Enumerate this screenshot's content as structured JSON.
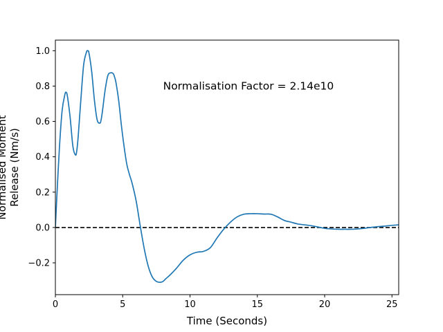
{
  "chart_data": {
    "type": "line",
    "title": "",
    "xlabel": "Time (Seconds)",
    "ylabel_lines": [
      "Normalised Moment",
      "Release (Nm/s)"
    ],
    "xlim": [
      0,
      25.5
    ],
    "ylim": [
      -0.38,
      1.06
    ],
    "xticks": [
      0,
      5,
      10,
      15,
      20,
      25
    ],
    "xtick_labels": [
      "0",
      "5",
      "10",
      "15",
      "20",
      "25"
    ],
    "yticks": [
      -0.2,
      0.0,
      0.2,
      0.4,
      0.6,
      0.8,
      1.0
    ],
    "ytick_labels": [
      "−0.2",
      "0.0",
      "0.2",
      "0.4",
      "0.6",
      "0.8",
      "1.0"
    ],
    "grid": false,
    "annotation": {
      "text": "Normalisation Factor = 2.14e10",
      "x": 8.0,
      "y": 0.8
    },
    "reference_line": {
      "y": 0.0,
      "style": "dashed",
      "color": "#000000"
    },
    "series": [
      {
        "color": "#1f77b4",
        "x": [
          0.0,
          0.1,
          0.3,
          0.5,
          0.7,
          0.8,
          0.9,
          1.1,
          1.3,
          1.5,
          1.6,
          1.7,
          1.9,
          2.1,
          2.3,
          2.4,
          2.5,
          2.7,
          2.9,
          3.1,
          3.3,
          3.4,
          3.5,
          3.7,
          3.9,
          4.1,
          4.3,
          4.4,
          4.5,
          4.7,
          4.9,
          5.1,
          5.3,
          5.5,
          5.7,
          6.0,
          6.3,
          6.6,
          6.9,
          7.2,
          7.5,
          7.8,
          8.0,
          8.2,
          8.5,
          9.0,
          9.5,
          10.0,
          10.5,
          11.0,
          11.5,
          12.0,
          12.5,
          13.0,
          13.5,
          14.0,
          14.5,
          15.0,
          15.5,
          16.0,
          16.5,
          17.0,
          17.5,
          18.0,
          18.5,
          19.0,
          19.5,
          20.0,
          20.5,
          21.0,
          21.5,
          22.0,
          22.5,
          23.0,
          23.5,
          24.0,
          24.5,
          25.0,
          25.5
        ],
        "values": [
          0.0,
          0.16,
          0.45,
          0.66,
          0.75,
          0.765,
          0.74,
          0.62,
          0.46,
          0.41,
          0.44,
          0.52,
          0.73,
          0.92,
          0.99,
          1.0,
          0.985,
          0.88,
          0.72,
          0.61,
          0.59,
          0.61,
          0.66,
          0.78,
          0.86,
          0.875,
          0.87,
          0.85,
          0.82,
          0.72,
          0.58,
          0.46,
          0.36,
          0.3,
          0.25,
          0.15,
          0.01,
          -0.12,
          -0.22,
          -0.28,
          -0.305,
          -0.31,
          -0.305,
          -0.29,
          -0.27,
          -0.23,
          -0.185,
          -0.155,
          -0.14,
          -0.135,
          -0.115,
          -0.06,
          -0.01,
          0.03,
          0.06,
          0.075,
          0.078,
          0.078,
          0.076,
          0.075,
          0.06,
          0.04,
          0.03,
          0.02,
          0.015,
          0.01,
          0.003,
          -0.005,
          -0.008,
          -0.01,
          -0.01,
          -0.01,
          -0.008,
          -0.004,
          0.001,
          0.005,
          0.008,
          0.012,
          0.015
        ]
      }
    ]
  }
}
